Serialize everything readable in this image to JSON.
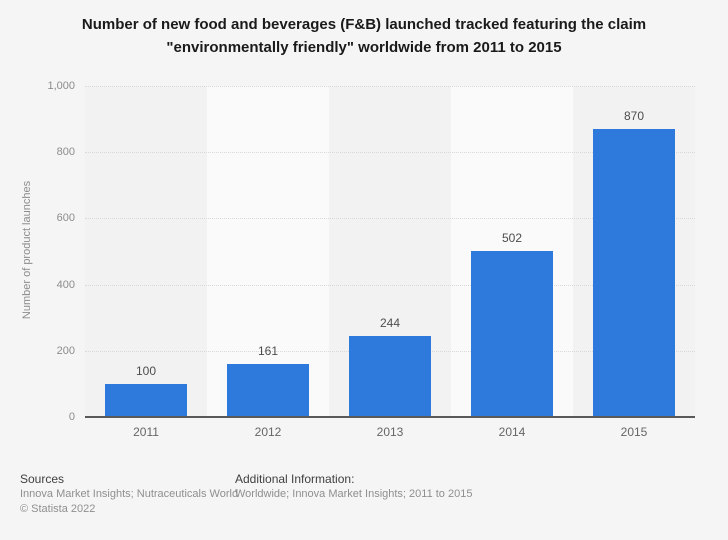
{
  "page": {
    "background": "#f5f5f5"
  },
  "chart_data": {
    "type": "bar",
    "title": "Number of new food and beverages (F&B) launched tracked featuring the claim \"environmentally friendly\" worldwide from 2011 to 2015",
    "title_line1": "Number of new food and beverages (F&B) launched tracked featuring the claim",
    "title_line2": "\"environmentally friendly\" worldwide from 2011 to 2015",
    "categories": [
      "2011",
      "2012",
      "2013",
      "2014",
      "2015"
    ],
    "values": [
      100,
      161,
      244,
      502,
      870
    ],
    "xlabel": "",
    "ylabel": "Number of product launches",
    "ylim": [
      0,
      1000
    ],
    "ytick_labels": [
      "1,000",
      "800",
      "600",
      "400",
      "200",
      "0"
    ],
    "ytick_values": [
      1000,
      800,
      600,
      400,
      200,
      0
    ],
    "grid": "horizontal-dotted",
    "legend": "none",
    "background_bands": "alternating vertical bands per category"
  },
  "colors": {
    "bar": "#2e79dc",
    "band_dark": "#f2f2f2",
    "band_light": "#fafafa",
    "gridline": "#d9d9d9",
    "axis_line": "#595959",
    "tick_text": "#8c8c8c",
    "value_label_text": "#4d4d4d",
    "title_text": "#1a1a1a"
  },
  "footer": {
    "sources_label": "Sources",
    "sources_line": "Innova Market Insights; Nutraceuticals World",
    "copyright_line": "© Statista 2022",
    "additional_label": "Additional Information:",
    "additional_line": "Worldwide; Innova Market Insights; 2011 to 2015"
  }
}
